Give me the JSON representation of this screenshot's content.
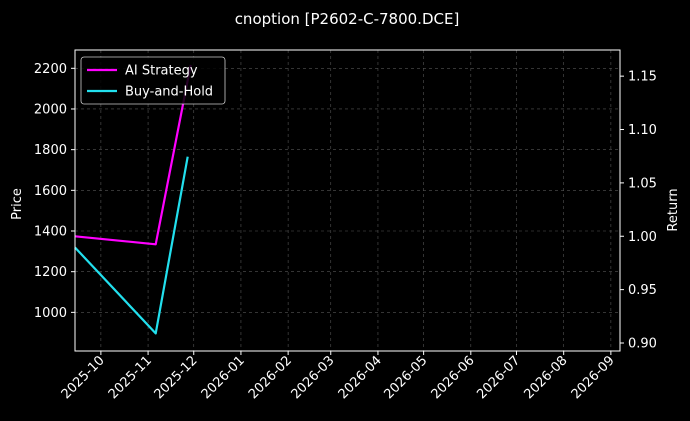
{
  "chart_data": {
    "type": "line",
    "title": "cnoption [P2602-C-7800.DCE]",
    "ylabel_left": "Price",
    "ylabel_right": "Return",
    "x_range": [
      "2025-09-14",
      "2026-09-07"
    ],
    "x_ticks": [
      "2025-10",
      "2025-11",
      "2025-12",
      "2026-01",
      "2026-02",
      "2026-03",
      "2026-04",
      "2026-05",
      "2026-06",
      "2026-07",
      "2026-08",
      "2026-09"
    ],
    "ylim_left": [
      810,
      2290
    ],
    "yticks_left": [
      1000,
      1200,
      1400,
      1600,
      1800,
      2000,
      2200
    ],
    "ylim_right": [
      0.8925,
      1.1745
    ],
    "yticks_right": [
      "0.90",
      "0.95",
      "1.00",
      "1.05",
      "1.10",
      "1.15"
    ],
    "grid": true,
    "legend_position": "top-left",
    "series": [
      {
        "name": "AI Strategy",
        "color": "#ff00ff",
        "axis": "right",
        "points": [
          [
            "2025-09-14",
            1.0
          ],
          [
            "2025-11-06",
            0.9925
          ],
          [
            "2025-11-29",
            1.1605
          ]
        ]
      },
      {
        "name": "Buy-and-Hold",
        "color": "#22e0ee",
        "axis": "right",
        "points": [
          [
            "2025-09-14",
            0.9895
          ],
          [
            "2025-11-06",
            0.909
          ],
          [
            "2025-11-27",
            1.0745
          ]
        ]
      }
    ]
  }
}
